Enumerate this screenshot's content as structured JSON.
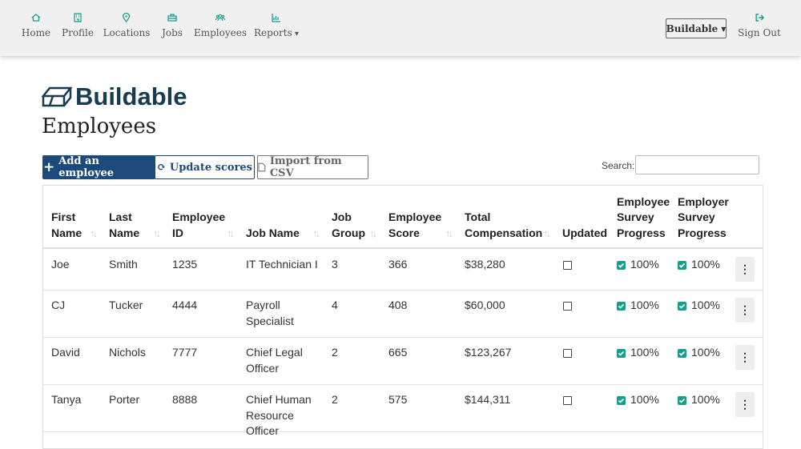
{
  "nav": {
    "items": [
      "Home",
      "Profile",
      "Locations",
      "Jobs",
      "Employees",
      "Reports"
    ],
    "brand_menu": "Buildable",
    "sign_out": "Sign Out"
  },
  "logo": "Buildable",
  "page_title": "Employees",
  "buttons": [
    "Add an employee",
    "Update scores",
    "Import from CSV"
  ],
  "search_label": "Search:",
  "table": {
    "headers": [
      "First Name",
      "Last Name",
      "Employee ID",
      "Job Name",
      "Job Group",
      "Employee Score",
      "Total Compensation",
      "Updated",
      "Employee Survey Progress",
      "Employer Survey Progress"
    ],
    "rows": [
      [
        "Joe",
        "Smith",
        "1235",
        "IT Technician I",
        "3",
        "366",
        "$38,280",
        "",
        "100%",
        "100%"
      ],
      [
        "CJ",
        "Tucker",
        "4444",
        "Payroll Specialist",
        "4",
        "408",
        "$60,000",
        "",
        "100%",
        "100%"
      ],
      [
        "David",
        "Nichols",
        "7777",
        "Chief Legal Officer",
        "2",
        "665",
        "$123,267",
        "",
        "100%",
        "100%"
      ],
      [
        "Tanya",
        "Porter",
        "8888",
        "Chief Human Resource Officer",
        "2",
        "575",
        "$144,311",
        "",
        "100%",
        "100%"
      ]
    ]
  }
}
